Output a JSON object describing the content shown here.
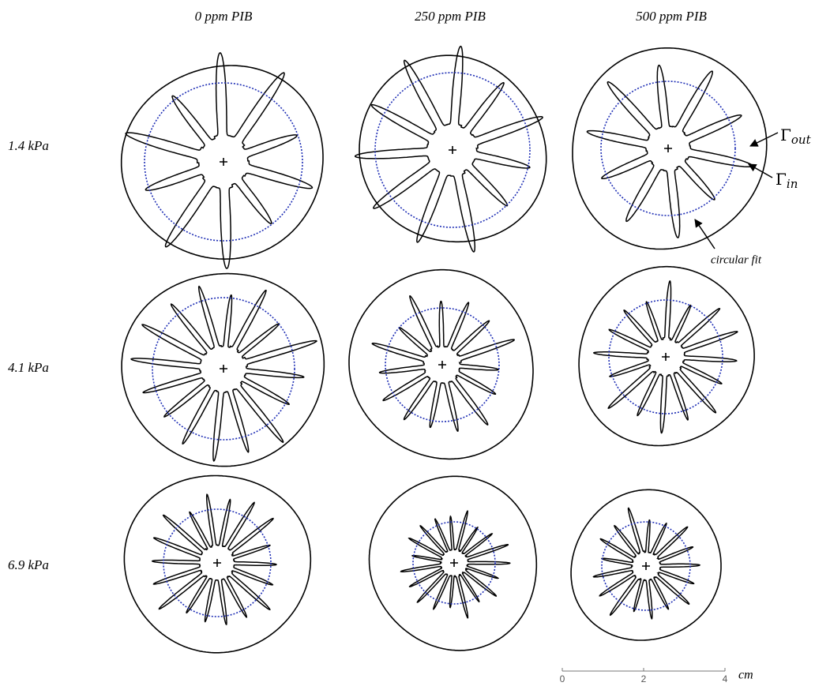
{
  "columns": [
    "0 ppm PIB",
    "250 ppm PIB",
    "500 ppm PIB"
  ],
  "rows": [
    "1.4 kPa",
    "4.1 kPa",
    "6.9 kPa"
  ],
  "annotations": {
    "gamma_out": {
      "symbol": "Γ",
      "subscript": "out"
    },
    "gamma_in": {
      "symbol": "Γ",
      "subscript": "in"
    },
    "circular_fit": "circular fit"
  },
  "scale_bar": {
    "xlim": [
      0,
      4
    ],
    "ticks": [
      0,
      2,
      4
    ],
    "unit": "cm"
  }
}
